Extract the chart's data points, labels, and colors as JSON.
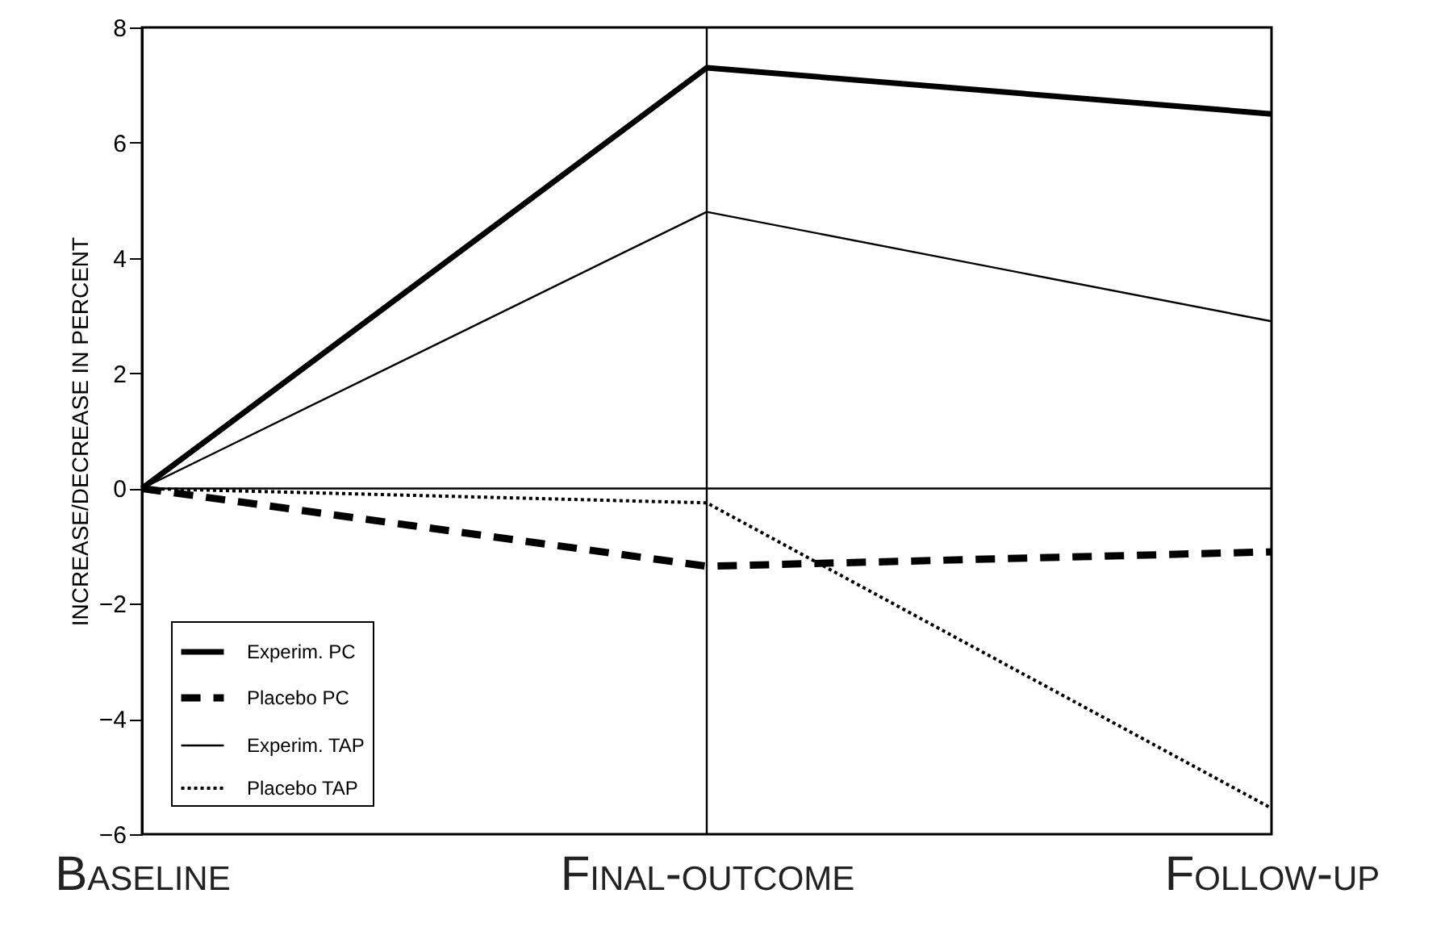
{
  "chart_data": {
    "type": "line",
    "ylabel": "INCREASE/DECREASE IN PERCENT",
    "categories": [
      "Baseline",
      "Final-outcome",
      "Follow-up"
    ],
    "series": [
      {
        "name": "Experim. PC",
        "color": "#000000",
        "line_style": "solid",
        "values": [
          0,
          7.3,
          6.5
        ]
      },
      {
        "name": "Placebo PC",
        "color": "#000000",
        "line_style": "dashed",
        "values": [
          0,
          -1.35,
          -1.1
        ]
      },
      {
        "name": "Experim. TAP",
        "color": "#000000",
        "line_style": "solid",
        "values": [
          0,
          4.8,
          2.9
        ]
      },
      {
        "name": "Placebo TAP",
        "color": "#000000",
        "line_style": "dotted",
        "values": [
          0,
          -0.25,
          -5.55
        ]
      }
    ],
    "ylim": [
      -6,
      8
    ],
    "yticks": [
      -6,
      -4,
      -2,
      0,
      2,
      4,
      6,
      8
    ],
    "legend": "bottom left",
    "marker": "none",
    "ref_lines": [
      {
        "axis": "y",
        "value": 0,
        "color": "#000000"
      },
      {
        "axis": "x",
        "value": "Final-outcome",
        "color": "#000000"
      }
    ]
  }
}
